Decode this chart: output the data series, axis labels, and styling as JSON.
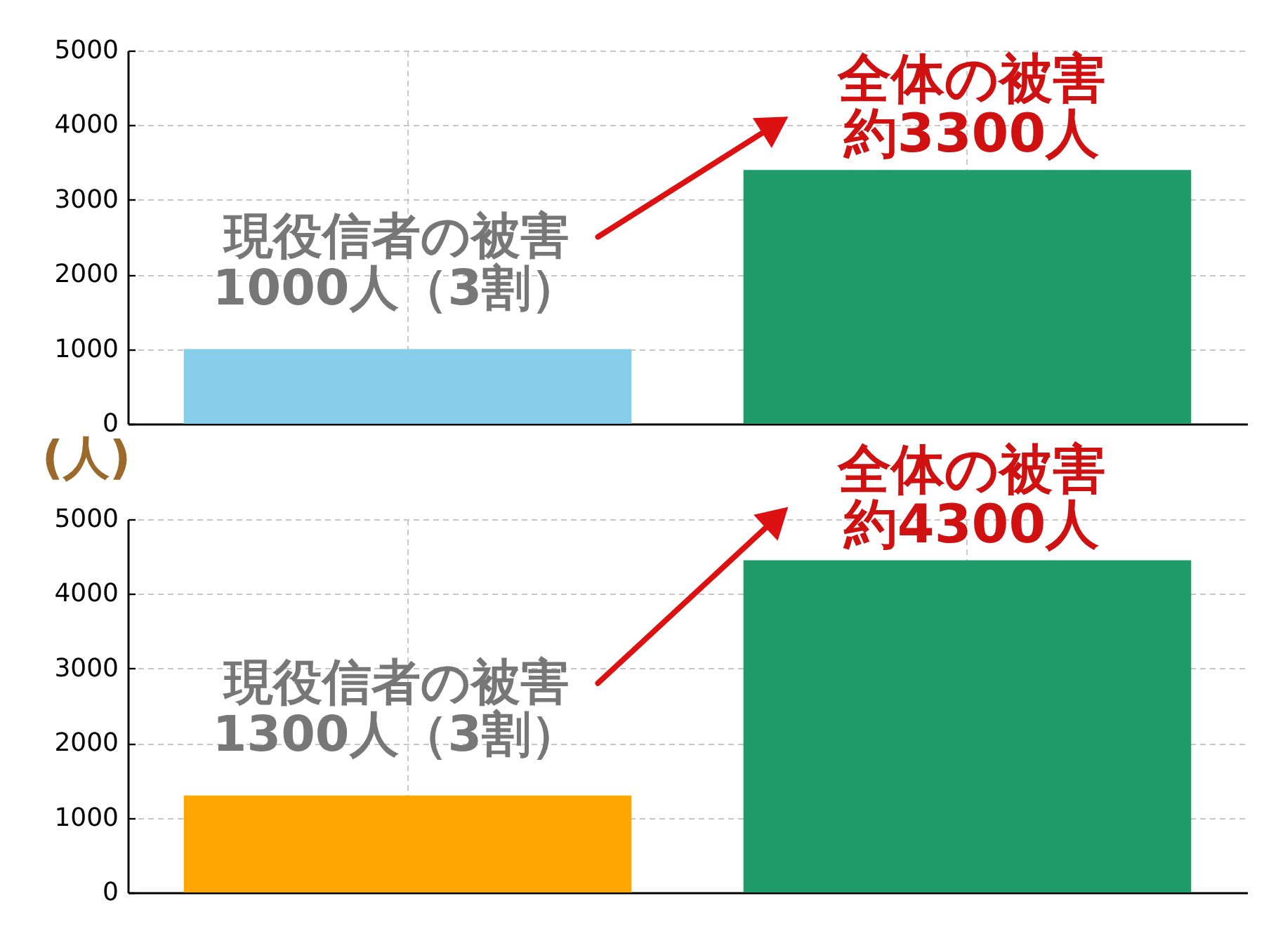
{
  "chart_data": [
    {
      "type": "bar",
      "categories": [
        null,
        null
      ],
      "values": [
        1000,
        3400
      ],
      "colors": [
        "#87ceeb",
        "#1e9b69"
      ],
      "ylim": [
        0,
        5000
      ],
      "yticks": [
        0,
        1000,
        2000,
        3000,
        4000,
        5000
      ],
      "grid": true,
      "annotations": [
        "現役信者の被害1000人（3割）",
        "全体の被害約3300人"
      ]
    },
    {
      "type": "bar",
      "categories": [
        null,
        null
      ],
      "values": [
        1300,
        4450
      ],
      "colors": [
        "#ffa500",
        "#1e9b69"
      ],
      "ylim": [
        0,
        5000
      ],
      "yticks": [
        0,
        1000,
        2000,
        3000,
        4000,
        5000
      ],
      "ylabel": "(人)",
      "grid": true,
      "annotations": [
        "現役信者の被害1300人（3割）",
        "全体の被害約4300人"
      ]
    }
  ]
}
